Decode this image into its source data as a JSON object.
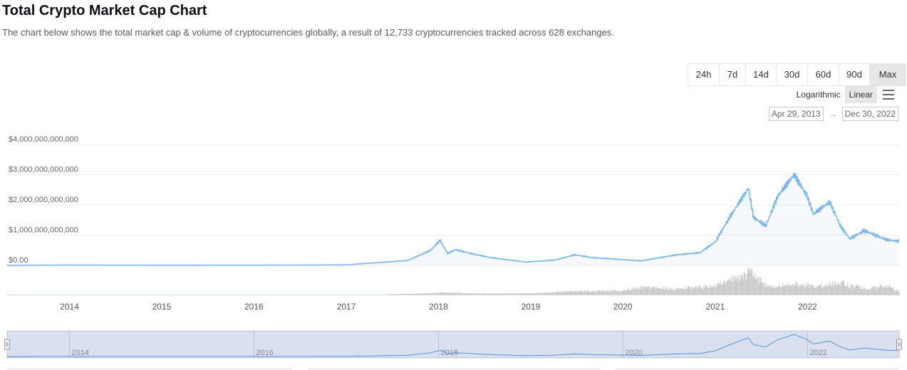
{
  "page": {
    "title": "Total Crypto Market Cap Chart",
    "description": "The chart below shows the total market cap & volume of cryptocurrencies globally, a result of 12,733 cryptocurrencies tracked across 628 exchanges."
  },
  "range_buttons": [
    "24h",
    "7d",
    "14d",
    "30d",
    "60d",
    "90d",
    "Max"
  ],
  "range_active": "Max",
  "scale": {
    "logarithmic": "Logarithmic",
    "linear": "Linear",
    "active": "Linear"
  },
  "date_range": {
    "from": "Apr 29, 2013",
    "arrow": "→",
    "to": "Dec 30, 2022"
  },
  "colors": {
    "line": "#7cb5ec",
    "volume": "#c8c8c8",
    "navigator_mask": "rgba(102,133,194,0.25)"
  },
  "chart_data": {
    "type": "area",
    "y_axis_labels": [
      "$4,000,000,000,000",
      "$3,000,000,000,000",
      "$2,000,000,000,000",
      "$1,000,000,000,000",
      "$0.00"
    ],
    "ylim": [
      0,
      4000000000000
    ],
    "x_axis_labels": [
      "2014",
      "2015",
      "2016",
      "2017",
      "2018",
      "2019",
      "2020",
      "2021",
      "2022"
    ],
    "xlim": [
      "2013-04-29",
      "2022-12-30"
    ],
    "grid": true,
    "series": [
      {
        "x": [
          "2013-04-29",
          "2014-01-01",
          "2015-01-01",
          "2016-01-01",
          "2017-01-01",
          "2017-06-01",
          "2017-09-01",
          "2017-12-01",
          "2018-01-07",
          "2018-02-06",
          "2018-03-10",
          "2018-05-05",
          "2018-08-01",
          "2018-12-15",
          "2019-04-01",
          "2019-06-26",
          "2019-09-01",
          "2020-03-13",
          "2020-08-01",
          "2020-11-01",
          "2021-01-01",
          "2021-02-20",
          "2021-04-15",
          "2021-05-12",
          "2021-06-01",
          "2021-07-20",
          "2021-09-06",
          "2021-11-09",
          "2021-12-31",
          "2022-01-24",
          "2022-03-30",
          "2022-05-12",
          "2022-06-18",
          "2022-08-14",
          "2022-11-09",
          "2022-12-30"
        ],
        "y": [
          1500000000,
          10000000000,
          5000000000,
          7000000000,
          18000000000,
          110000000000,
          160000000000,
          500000000000,
          830000000000,
          400000000000,
          520000000000,
          400000000000,
          250000000000,
          110000000000,
          170000000000,
          350000000000,
          260000000000,
          150000000000,
          350000000000,
          420000000000,
          780000000000,
          1500000000000,
          2200000000000,
          2550000000000,
          1600000000000,
          1300000000000,
          2300000000000,
          3000000000000,
          2300000000000,
          1700000000000,
          2100000000000,
          1300000000000,
          880000000000,
          1150000000000,
          850000000000,
          800000000000
        ]
      },
      {
        "x": [
          "2013-04-29",
          "2016-12-31",
          "2017-06-01",
          "2017-12-01",
          "2018-01-07",
          "2018-06-01",
          "2019-01-01",
          "2019-06-26",
          "2020-01-01",
          "2020-03-13",
          "2020-08-01",
          "2021-01-01",
          "2021-02-20",
          "2021-05-19",
          "2021-08-01",
          "2021-11-09",
          "2022-01-24",
          "2022-05-12",
          "2022-06-18",
          "2022-09-01",
          "2022-11-09",
          "2022-12-30"
        ],
        "y": [
          0,
          1000000000,
          3000000000,
          25000000000,
          45000000000,
          20000000000,
          25000000000,
          70000000000,
          80000000000,
          150000000000,
          110000000000,
          180000000000,
          280000000000,
          450000000000,
          150000000000,
          220000000000,
          160000000000,
          250000000000,
          180000000000,
          120000000000,
          200000000000,
          60000000000
        ]
      }
    ],
    "navigator_labels": [
      "2014",
      "2016",
      "2018",
      "2020",
      "2022"
    ]
  }
}
